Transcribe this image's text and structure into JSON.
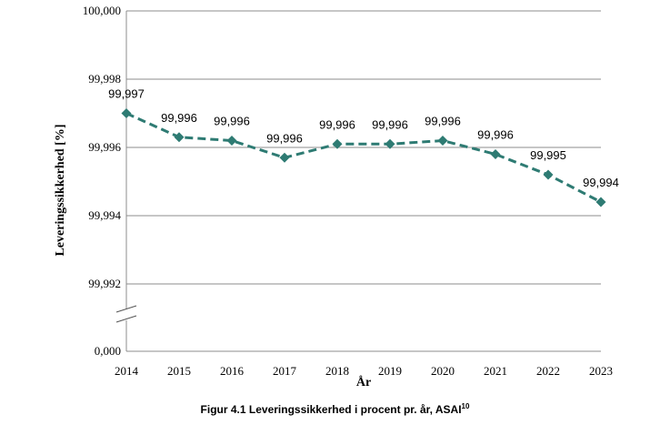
{
  "chart_data": {
    "type": "line",
    "x": [
      "2014",
      "2015",
      "2016",
      "2017",
      "2018",
      "2019",
      "2020",
      "2021",
      "2022",
      "2023"
    ],
    "values": [
      99.997,
      99.9963,
      99.9962,
      99.9957,
      99.9961,
      99.9961,
      99.9962,
      99.9958,
      99.9952,
      99.9944
    ],
    "data_labels": [
      "99,997",
      "99,996",
      "99,996",
      "99,996",
      "99,996",
      "99,996",
      "99,996",
      "99,996",
      "99,995",
      "99,994"
    ],
    "ylim": [
      99.992,
      100.0
    ],
    "y_ticks": [
      99.992,
      99.994,
      99.996,
      99.998,
      100.0
    ],
    "y_tick_labels": [
      "99,992",
      "99,994",
      "99,996",
      "99,998",
      "100,000"
    ],
    "y_base_label": "0,000",
    "axis_break": true,
    "xlabel": "År",
    "ylabel": "Leveringssikkerhed [%]",
    "grid": true,
    "series_color": "#2e7b73",
    "line_style": "dashed",
    "marker": "diamond"
  },
  "caption": {
    "text": "Figur 4.1 Leveringssikkerhed i procent pr. år, ASAI",
    "superscript": "10"
  }
}
